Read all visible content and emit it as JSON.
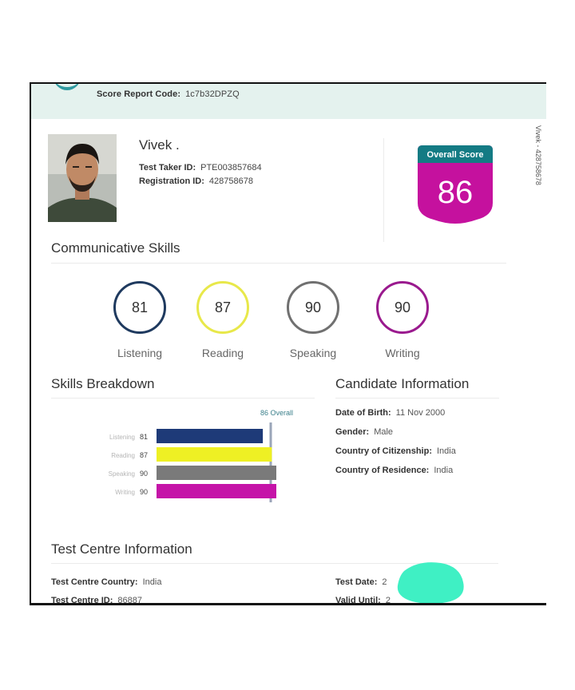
{
  "header": {
    "score_report_code_label": "Score Report Code:",
    "score_report_code": "1c7b32DPZQ"
  },
  "candidate": {
    "name": "Vivek .",
    "test_taker_id_label": "Test Taker ID:",
    "test_taker_id": "PTE003857684",
    "registration_id_label": "Registration ID:",
    "registration_id": "428758678"
  },
  "overall_score": {
    "label": "Overall Score",
    "value": "86",
    "banner_color": "#147b84",
    "badge_color": "#c5119e"
  },
  "side_text": "Vivek - 428758678",
  "communicative_skills": {
    "title": "Communicative Skills",
    "skills": [
      {
        "name": "Listening",
        "score": "81",
        "color": "#1f3a5f"
      },
      {
        "name": "Reading",
        "score": "87",
        "color": "#e8e84a"
      },
      {
        "name": "Speaking",
        "score": "90",
        "color": "#707070"
      },
      {
        "name": "Writing",
        "score": "90",
        "color": "#9a1a8e"
      }
    ]
  },
  "skills_breakdown": {
    "title": "Skills Breakdown"
  },
  "chart_data": {
    "type": "bar",
    "orientation": "horizontal",
    "categories": [
      "Listening",
      "Reading",
      "Speaking",
      "Writing"
    ],
    "values": [
      81,
      87,
      90,
      90
    ],
    "colors": [
      "#1e3a78",
      "#eef024",
      "#7a7a7a",
      "#c514a8"
    ],
    "reference_line": {
      "value": 86,
      "label": "86 Overall"
    },
    "xlim": [
      10,
      90
    ]
  },
  "candidate_information": {
    "title": "Candidate Information",
    "fields": [
      {
        "label": "Date of Birth:",
        "value": "11 Nov 2000"
      },
      {
        "label": "Gender:",
        "value": "Male"
      },
      {
        "label": "Country of Citizenship:",
        "value": "India"
      },
      {
        "label": "Country of Residence:",
        "value": "India"
      }
    ]
  },
  "test_centre": {
    "title": "Test Centre Information",
    "country_label": "Test Centre Country:",
    "country": "India",
    "id_label": "Test Centre ID:",
    "id": "86887",
    "test_date_label": "Test Date:",
    "test_date_partial": "2",
    "valid_until_label": "Valid Until:",
    "valid_until_partial": "2"
  }
}
